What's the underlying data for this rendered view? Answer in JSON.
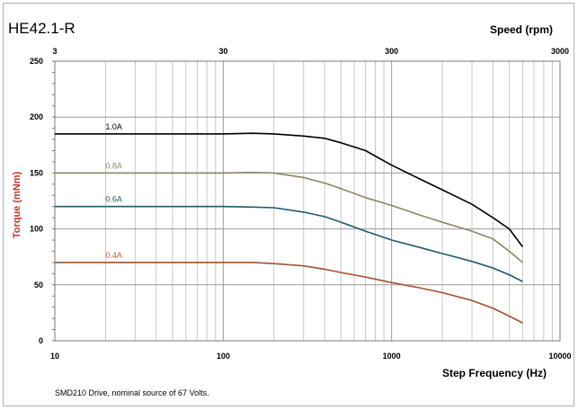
{
  "chart_data": {
    "type": "line",
    "title": "HE42.1-R",
    "xlabel": "Step Frequency (Hz)",
    "ylabel": "Torque (mNm)",
    "x2label": "Speed (rpm)",
    "xscale": "log",
    "xlim": [
      10,
      10000
    ],
    "ylim": [
      0,
      250
    ],
    "x_ticks": [
      "10",
      "100",
      "1000",
      "10000"
    ],
    "x2_ticks": [
      "3",
      "30",
      "300",
      "3000"
    ],
    "y_ticks": [
      "0",
      "50",
      "100",
      "150",
      "200",
      "250"
    ],
    "grid": true,
    "series": [
      {
        "name": "1.0A",
        "color": "#000000",
        "x": [
          10,
          100,
          150,
          200,
          300,
          400,
          500,
          700,
          1000,
          1500,
          2000,
          3000,
          4000,
          5000,
          6000
        ],
        "y": [
          185,
          185,
          185.5,
          185,
          183,
          181,
          177,
          170,
          157,
          144,
          135,
          122,
          110,
          100,
          84
        ]
      },
      {
        "name": "0.8A",
        "color": "#8b8660",
        "x": [
          10,
          100,
          150,
          200,
          300,
          400,
          500,
          700,
          1000,
          1500,
          2000,
          3000,
          4000,
          5000,
          6000
        ],
        "y": [
          150,
          150,
          150.5,
          150,
          146,
          141,
          136,
          128,
          121,
          112,
          106,
          98,
          91,
          80,
          70
        ]
      },
      {
        "name": "0.6A",
        "color": "#1f5a6e",
        "x": [
          10,
          100,
          150,
          200,
          300,
          400,
          500,
          700,
          1000,
          1500,
          2000,
          3000,
          4000,
          5000,
          6000
        ],
        "y": [
          120,
          120,
          119.5,
          119,
          115,
          111,
          106,
          98,
          90,
          83,
          78,
          71,
          65,
          59,
          53
        ]
      },
      {
        "name": "0.4A",
        "color": "#a0522d",
        "x": [
          10,
          100,
          150,
          200,
          300,
          400,
          500,
          700,
          1000,
          1500,
          2000,
          3000,
          4000,
          5000,
          6000
        ],
        "y": [
          70,
          70,
          70,
          69,
          67,
          64,
          61,
          57,
          52,
          47,
          43,
          36,
          29,
          22,
          16
        ]
      }
    ],
    "series_label_colors": [
      "#000000",
      "#8b8660",
      "#1f5a6e",
      "#c8602a"
    ]
  },
  "footnote": "SMD210  Drive, nominal source of 67 Volts."
}
